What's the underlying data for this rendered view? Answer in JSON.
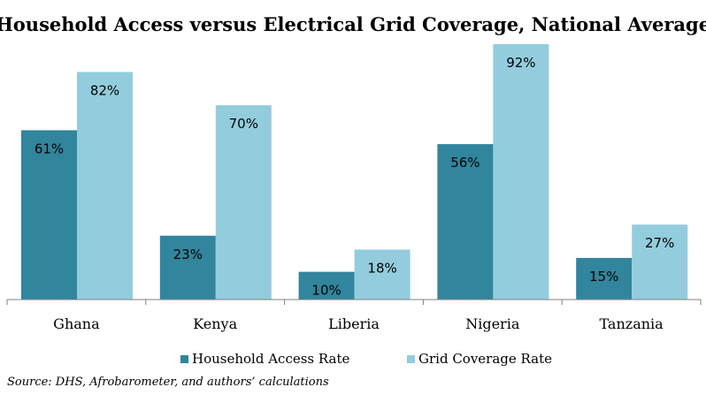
{
  "colors": {
    "series_0": "#31859C",
    "series_1": "#93CDDD",
    "axis": "#808080"
  },
  "source": "Source: DHS, Afrobarometer, and authors’ calculations",
  "chart_data": {
    "type": "bar",
    "title": "Household Access versus Electrical Grid Coverage, National Average",
    "xlabel": "",
    "ylabel": "",
    "categories": [
      "Ghana",
      "Kenya",
      "Liberia",
      "Nigeria",
      "Tanzania"
    ],
    "series": [
      {
        "name": "Household Access Rate",
        "values": [
          61,
          23,
          10,
          56,
          15
        ],
        "labels": [
          "61%",
          "23%",
          "10%",
          "56%",
          "15%"
        ]
      },
      {
        "name": "Grid Coverage Rate",
        "values": [
          82,
          70,
          18,
          92,
          27
        ],
        "labels": [
          "82%",
          "70%",
          "18%",
          "92%",
          "27%"
        ]
      }
    ],
    "ylim": [
      0,
      92
    ],
    "grid": false,
    "legend": "bottom"
  }
}
